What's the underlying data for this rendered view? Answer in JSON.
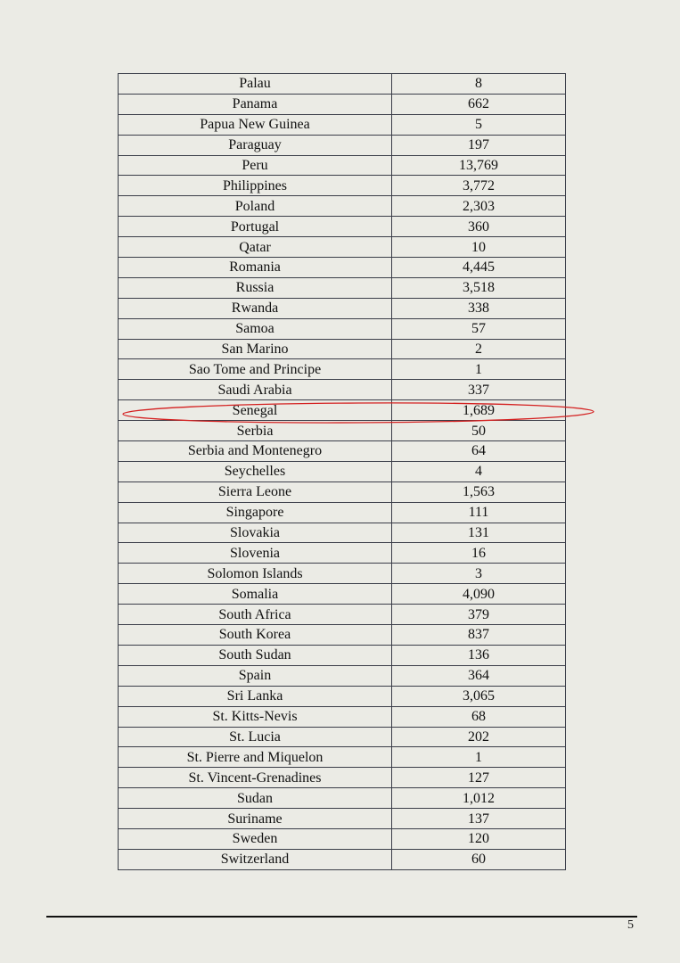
{
  "table": {
    "rows": [
      [
        "Palau",
        "8"
      ],
      [
        "Panama",
        "662"
      ],
      [
        "Papua New Guinea",
        "5"
      ],
      [
        "Paraguay",
        "197"
      ],
      [
        "Peru",
        "13,769"
      ],
      [
        "Philippines",
        "3,772"
      ],
      [
        "Poland",
        "2,303"
      ],
      [
        "Portugal",
        "360"
      ],
      [
        "Qatar",
        "10"
      ],
      [
        "Romania",
        "4,445"
      ],
      [
        "Russia",
        "3,518"
      ],
      [
        "Rwanda",
        "338"
      ],
      [
        "Samoa",
        "57"
      ],
      [
        "San Marino",
        "2"
      ],
      [
        "Sao Tome and Principe",
        "1"
      ],
      [
        "Saudi Arabia",
        "337"
      ],
      [
        "Senegal",
        "1,689"
      ],
      [
        "Serbia",
        "50"
      ],
      [
        "Serbia and Montenegro",
        "64"
      ],
      [
        "Seychelles",
        "4"
      ],
      [
        "Sierra Leone",
        "1,563"
      ],
      [
        "Singapore",
        "111"
      ],
      [
        "Slovakia",
        "131"
      ],
      [
        "Slovenia",
        "16"
      ],
      [
        "Solomon Islands",
        "3"
      ],
      [
        "Somalia",
        "4,090"
      ],
      [
        "South Africa",
        "379"
      ],
      [
        "South Korea",
        "837"
      ],
      [
        "South Sudan",
        "136"
      ],
      [
        "Spain",
        "364"
      ],
      [
        "Sri Lanka",
        "3,065"
      ],
      [
        "St. Kitts-Nevis",
        "68"
      ],
      [
        "St. Lucia",
        "202"
      ],
      [
        "St. Pierre and Miquelon",
        "1"
      ],
      [
        "St. Vincent-Grenadines",
        "127"
      ],
      [
        "Sudan",
        "1,012"
      ],
      [
        "Suriname",
        "137"
      ],
      [
        "Sweden",
        "120"
      ],
      [
        "Switzerland",
        "60"
      ]
    ],
    "highlighted_row": "Senegal",
    "highlight_color": "#d42020"
  },
  "footer": {
    "page_number": "5"
  }
}
